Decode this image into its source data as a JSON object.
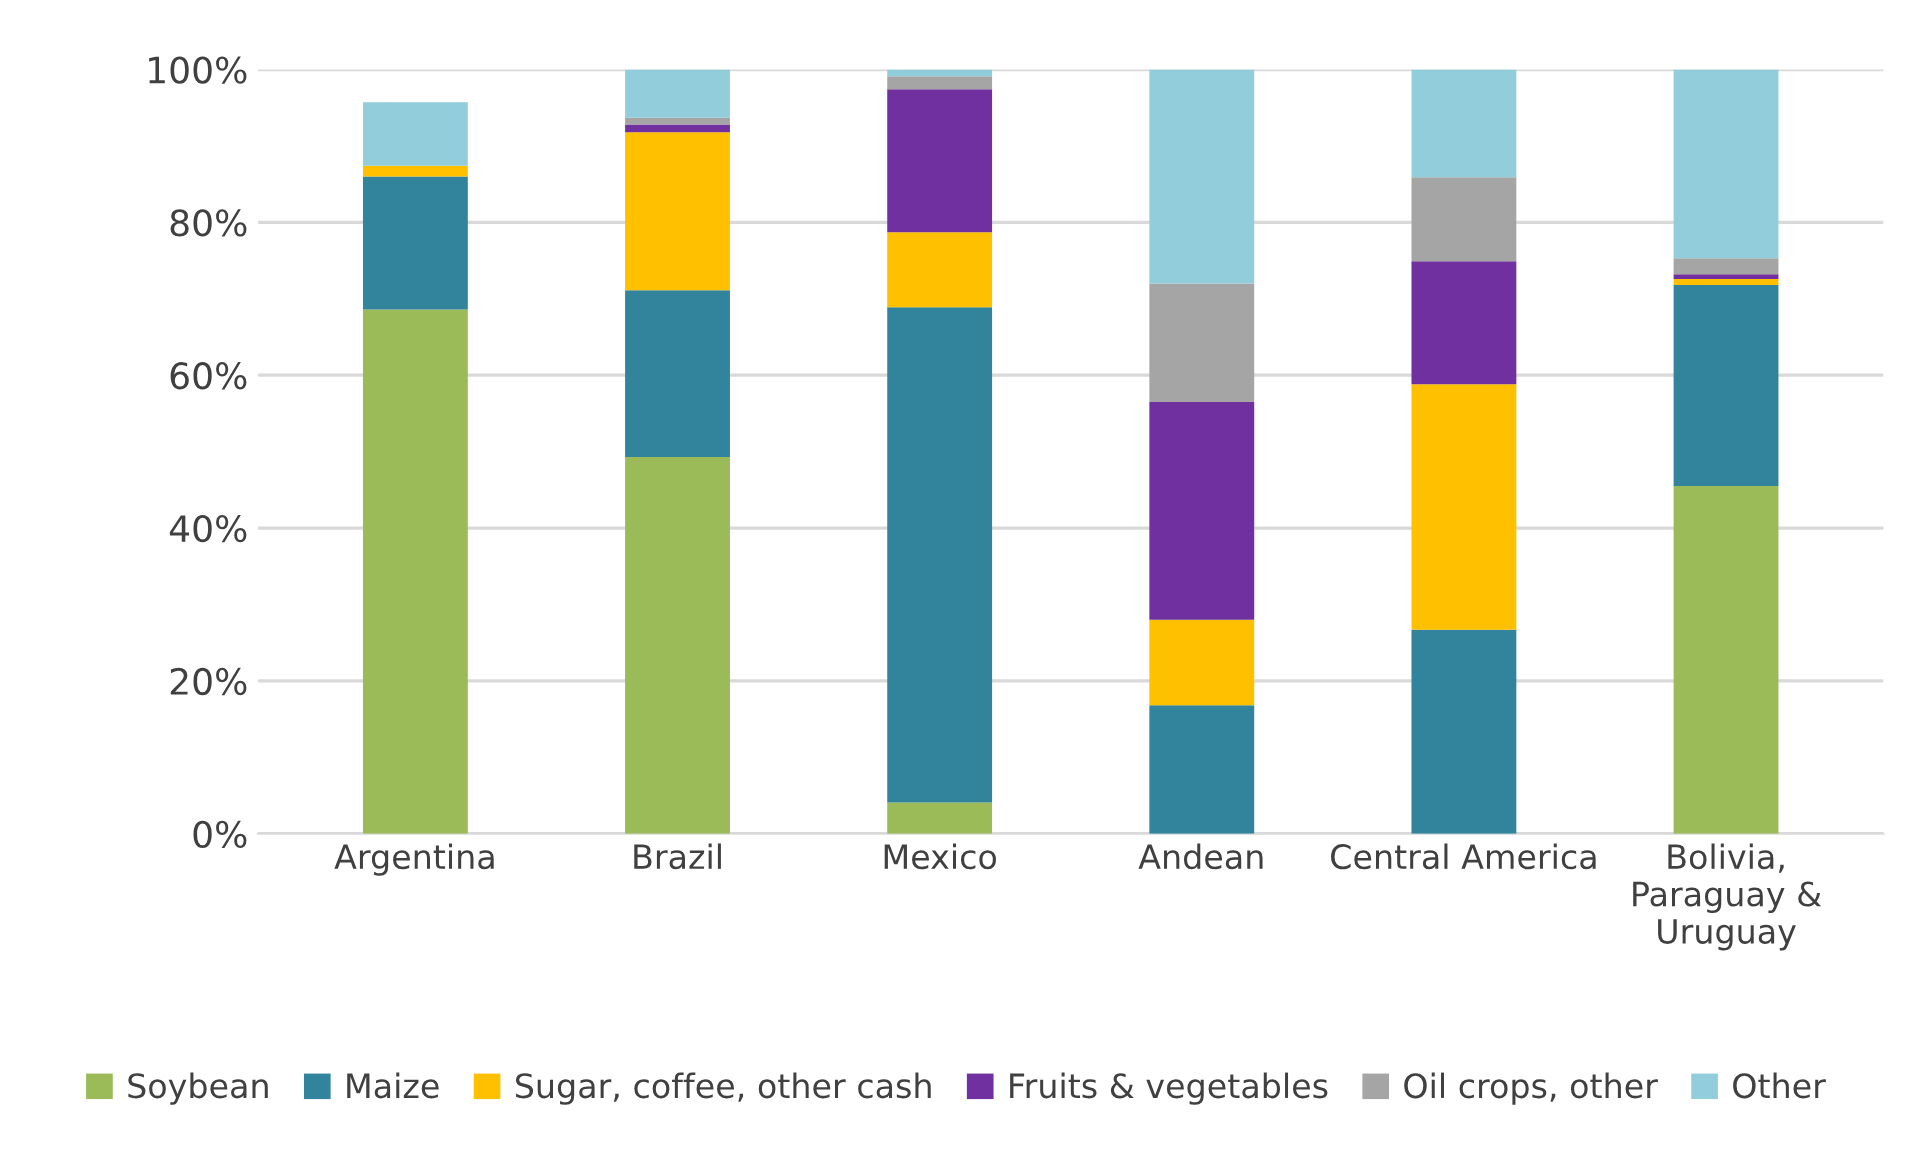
{
  "chart_data": {
    "type": "bar",
    "stacked": true,
    "categories": [
      "Argentina",
      "Brazil",
      "Mexico",
      "Andean",
      "Central America",
      "Bolivia,\nParaguay &\nUruguay"
    ],
    "series": [
      {
        "name": "Soybean",
        "color": "#9bbb59",
        "values": [
          68.6,
          49.3,
          4.1,
          0,
          0,
          45.5
        ]
      },
      {
        "name": "Maize",
        "color": "#31849b",
        "values": [
          17.4,
          21.8,
          64.8,
          16.8,
          26.7,
          26.3
        ]
      },
      {
        "name": "Sugar, coffee, other cash",
        "color": "#ffc000",
        "values": [
          1.4,
          20.7,
          9.8,
          11.2,
          32.1,
          0.8
        ]
      },
      {
        "name": "Fruits & vegetables",
        "color": "#7030a0",
        "values": [
          0,
          1.0,
          18.7,
          28.5,
          16.1,
          0.6
        ]
      },
      {
        "name": "Oil crops, other",
        "color": "#a5a5a5",
        "values": [
          0,
          0.9,
          1.7,
          15.5,
          11.0,
          2.1
        ]
      },
      {
        "name": "Other",
        "color": "#92cddc",
        "values": [
          8.3,
          6.3,
          0.9,
          28.0,
          14.1,
          24.7
        ]
      }
    ],
    "ylim": [
      0,
      100
    ],
    "yticks": [
      {
        "value": 0,
        "label": "0%"
      },
      {
        "value": 20,
        "label": "20%"
      },
      {
        "value": 40,
        "label": "40%"
      },
      {
        "value": 60,
        "label": "60%"
      },
      {
        "value": 80,
        "label": "80%"
      },
      {
        "value": 100,
        "label": "100%"
      }
    ],
    "grid": "y",
    "legend": "bottom"
  }
}
